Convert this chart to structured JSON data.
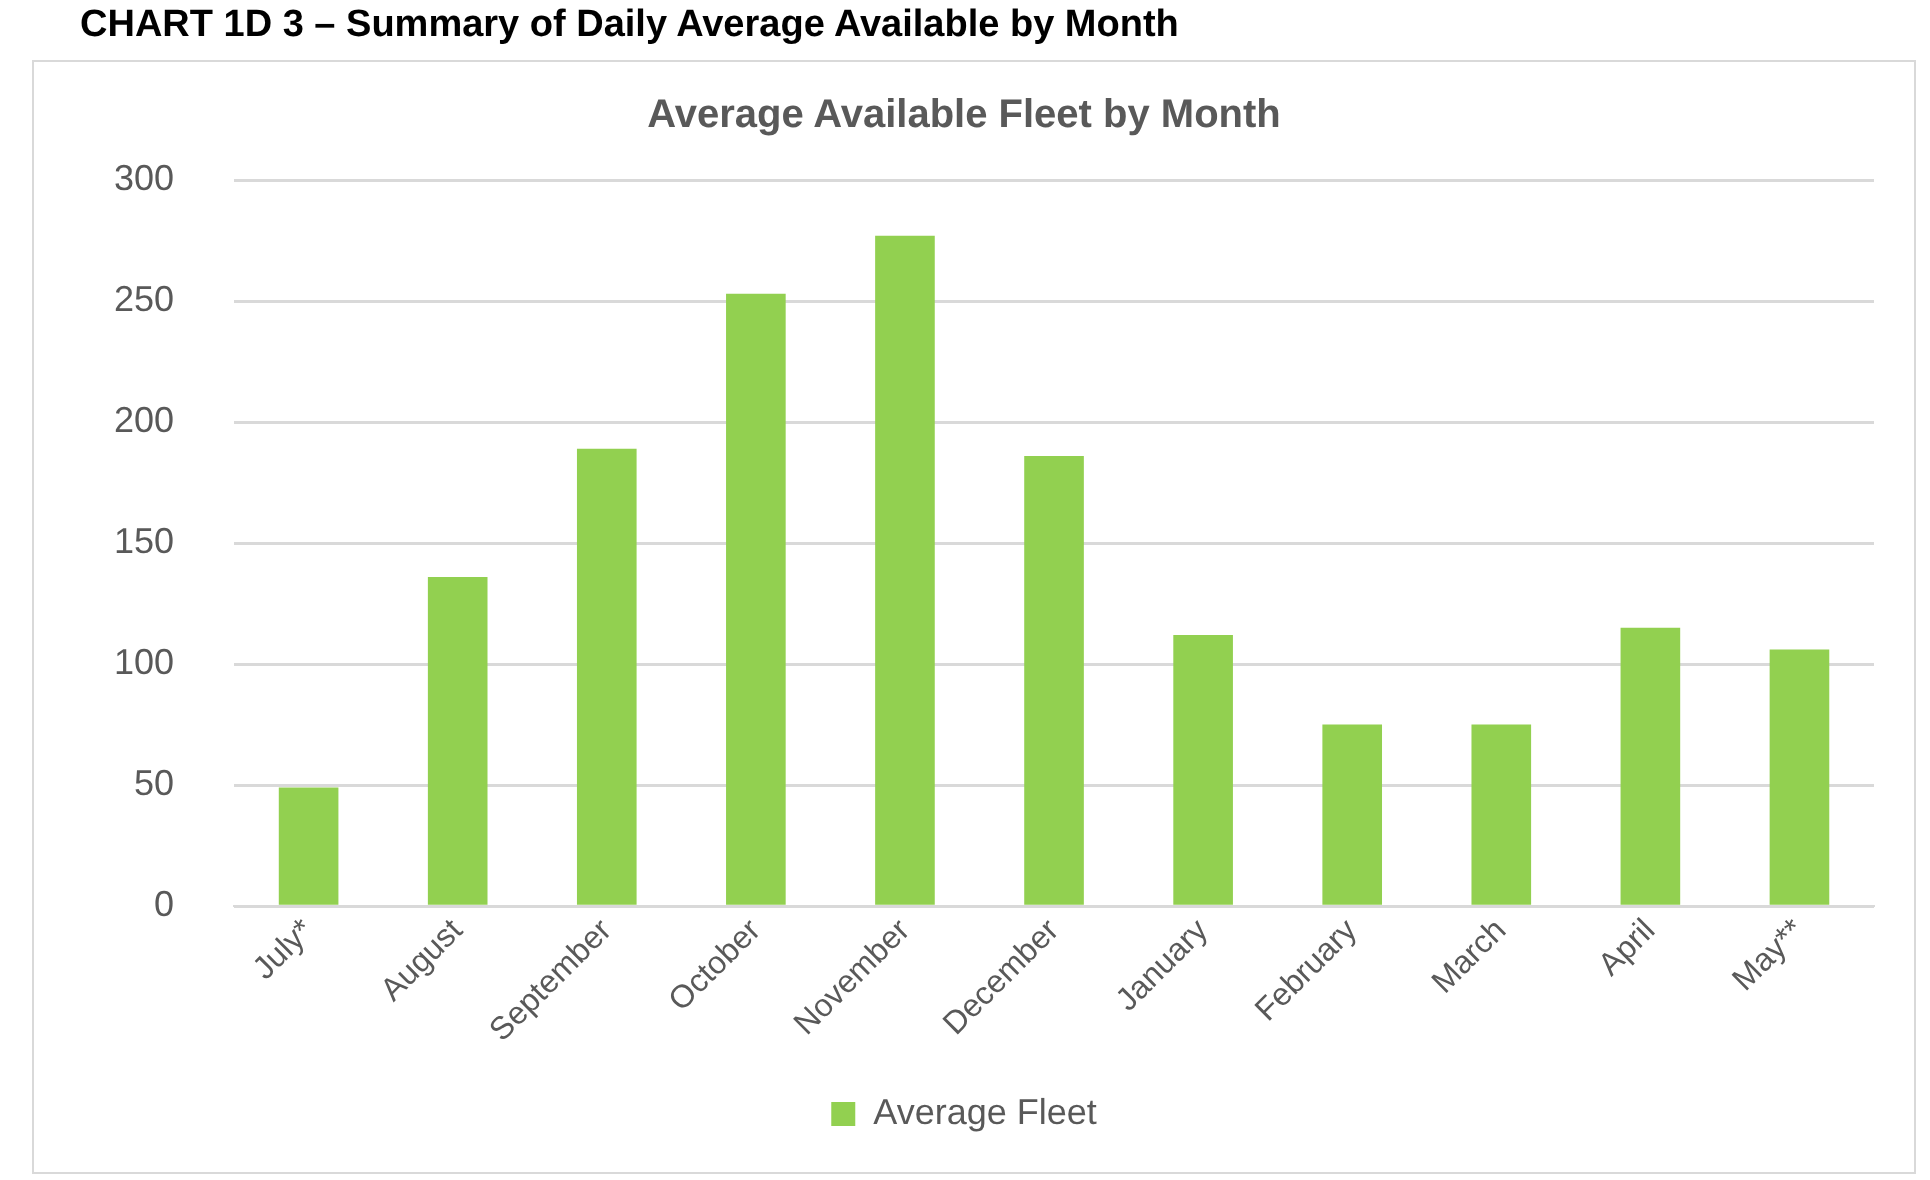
{
  "chart_data": {
    "type": "bar",
    "title": "Average Available Fleet by Month",
    "annotations": [
      "CHART 1D 3 – Summary of Daily Average Available by Month"
    ],
    "categories": [
      "July*",
      "August",
      "September",
      "October",
      "November",
      "December",
      "January",
      "February",
      "March",
      "April",
      "May**"
    ],
    "series": [
      {
        "name": "Average Fleet",
        "color": "#92d050",
        "values": [
          49,
          136,
          189,
          253,
          277,
          186,
          112,
          75,
          75,
          115,
          106
        ]
      }
    ],
    "ylim": [
      0,
      300
    ],
    "yticks": [
      0,
      50,
      100,
      150,
      200,
      250,
      300
    ],
    "grid": "y",
    "legend": "bottom"
  }
}
